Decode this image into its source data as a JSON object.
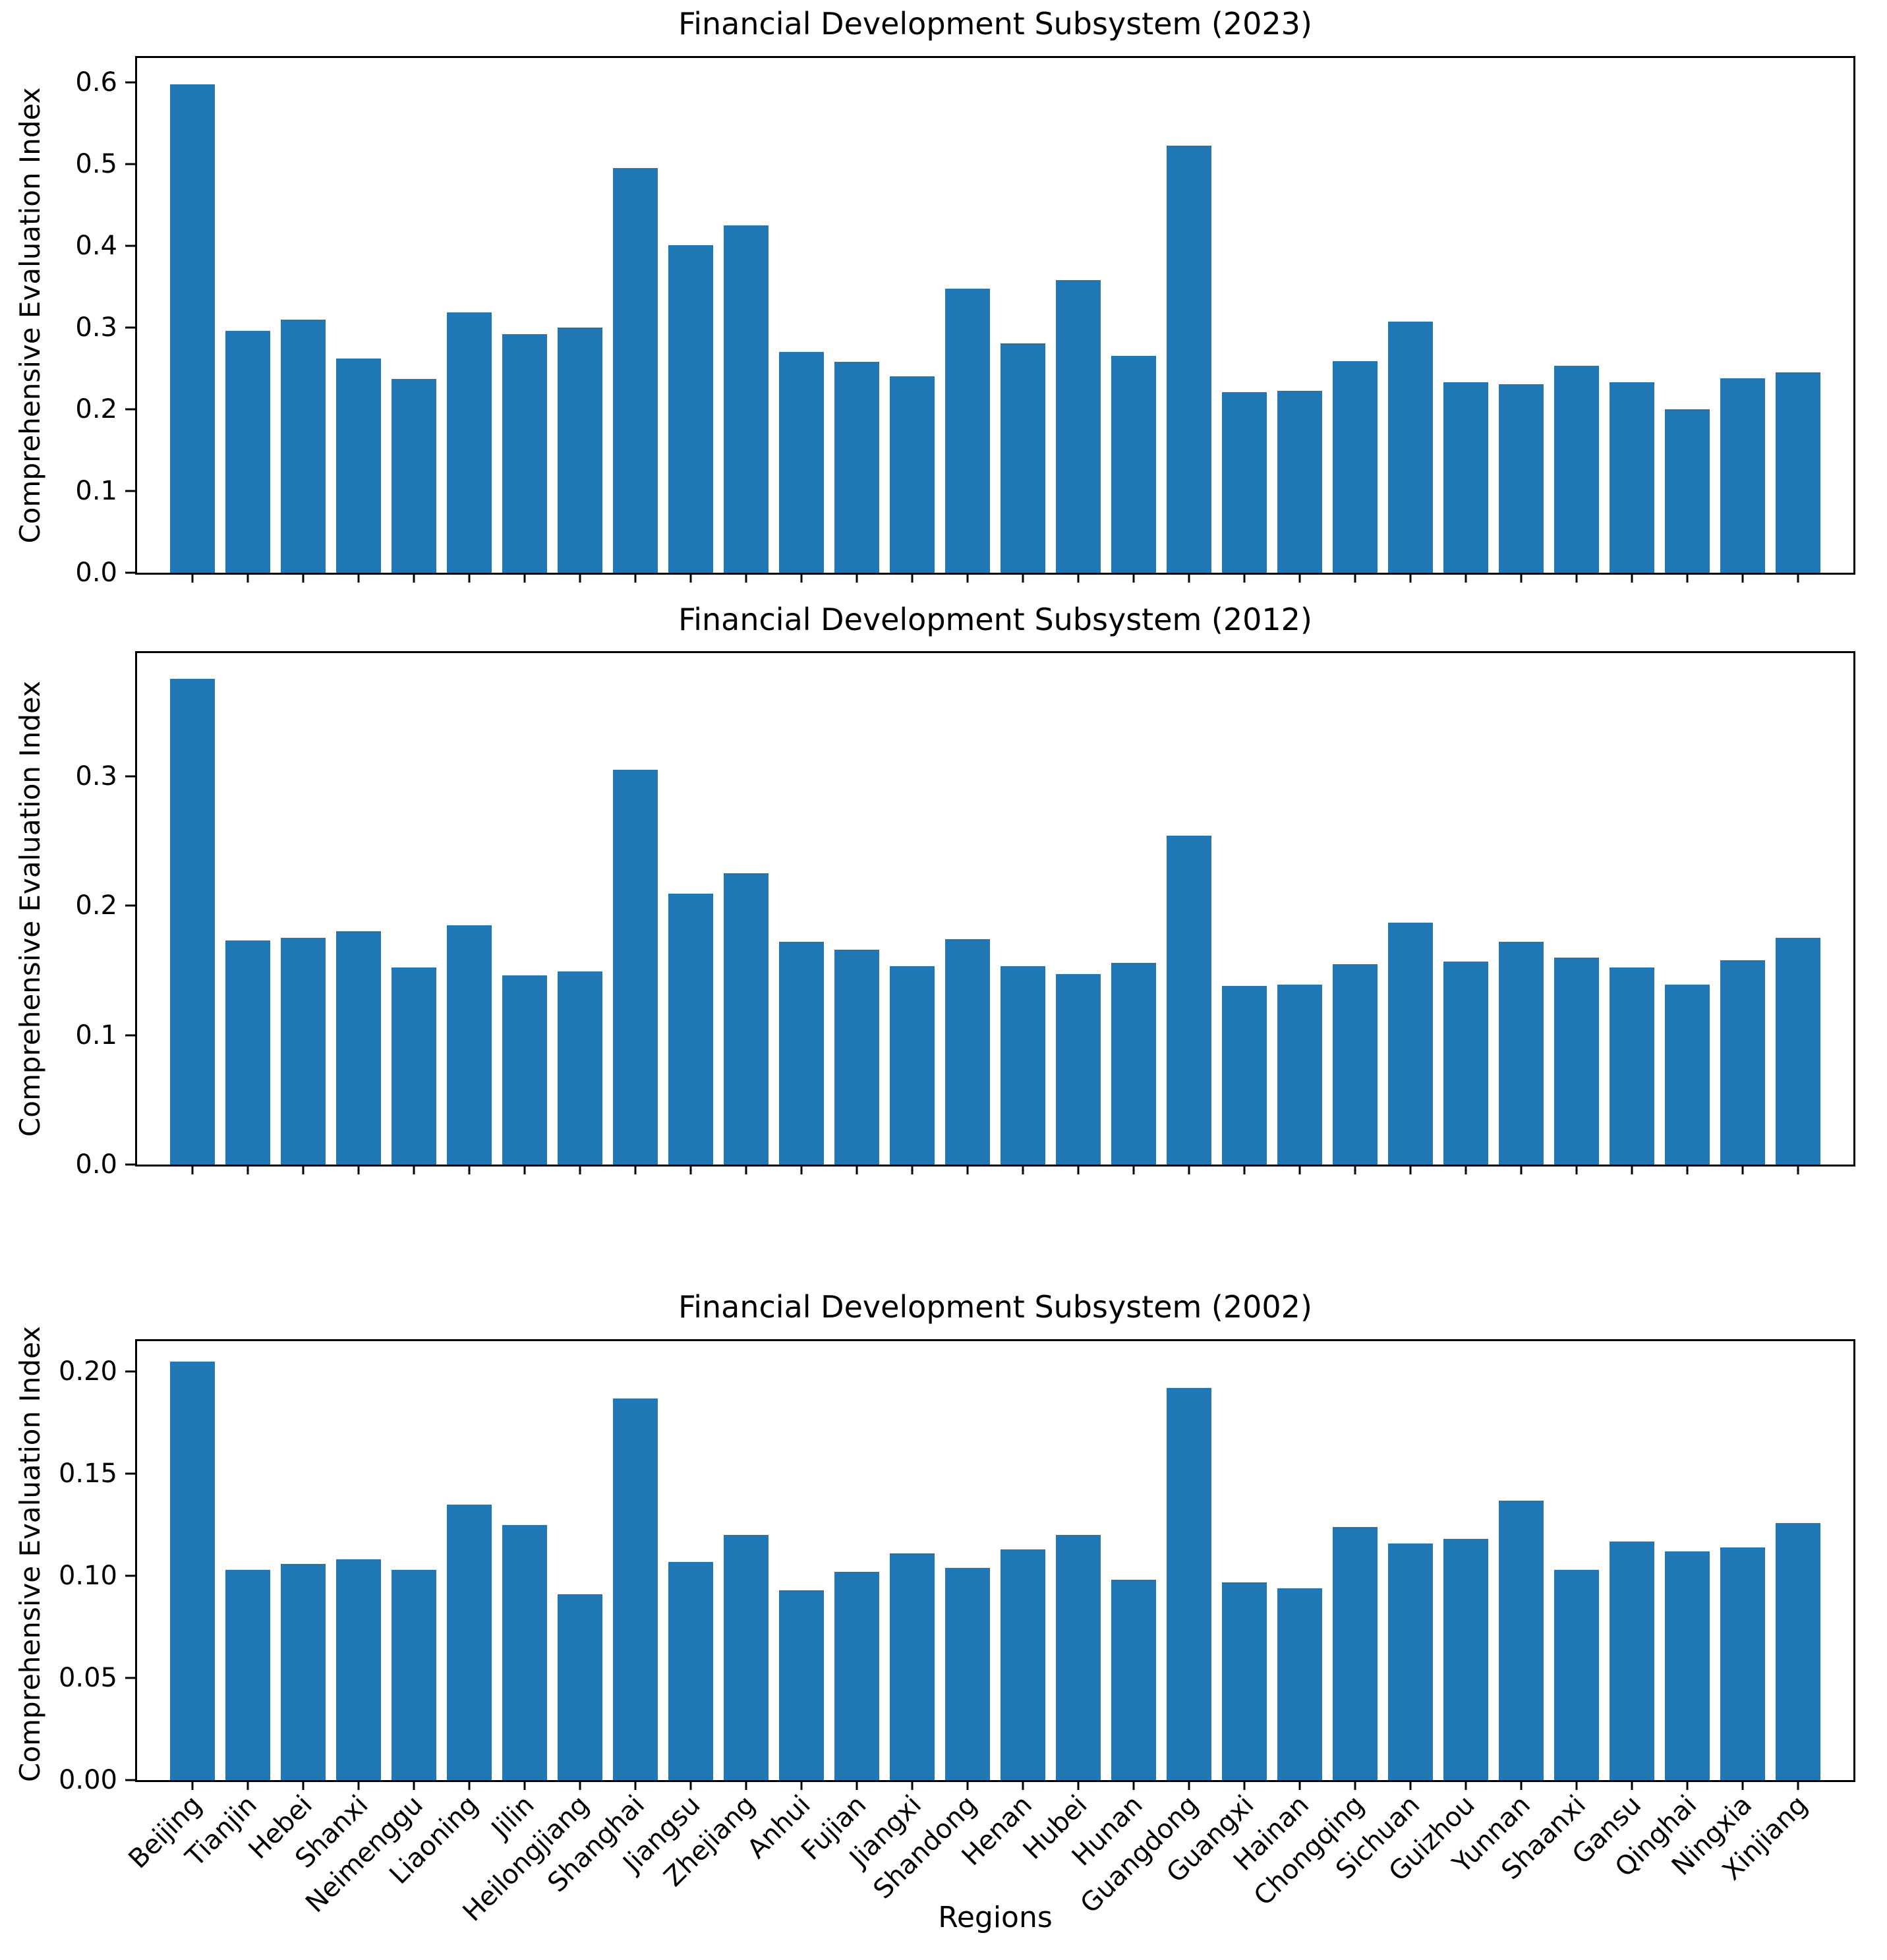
{
  "style": {
    "bar_color": "#1f77b4",
    "axis_color": "#000000",
    "background": "#ffffff"
  },
  "figure": {
    "xlabel": "Regions",
    "ylabel": "Comprehensive Evaluation Index"
  },
  "chart_data": [
    {
      "type": "bar",
      "title": "Financial Development Subsystem (2023)",
      "xlabel": "",
      "ylabel": "Comprehensive Evaluation Index",
      "legend": "none",
      "grid": false,
      "show_xticklabels": false,
      "categories": [
        "Beijing",
        "Tianjin",
        "Hebei",
        "Shanxi",
        "Neimenggu",
        "Liaoning",
        "Jilin",
        "Heilongjiang",
        "Shanghai",
        "Jiangsu",
        "Zhejiang",
        "Anhui",
        "Fujian",
        "Jiangxi",
        "Shandong",
        "Henan",
        "Hubei",
        "Hunan",
        "Guangdong",
        "Guangxi",
        "Hainan",
        "Chongqing",
        "Sichuan",
        "Guizhou",
        "Yunnan",
        "Shaanxi",
        "Gansu",
        "Qinghai",
        "Ningxia",
        "Xinjiang"
      ],
      "values": [
        0.598,
        0.296,
        0.31,
        0.262,
        0.237,
        0.319,
        0.292,
        0.3,
        0.495,
        0.401,
        0.425,
        0.27,
        0.258,
        0.24,
        0.348,
        0.281,
        0.358,
        0.265,
        0.523,
        0.221,
        0.223,
        0.259,
        0.307,
        0.233,
        0.231,
        0.253,
        0.233,
        0.2,
        0.238,
        0.245
      ],
      "ylim": [
        0,
        0.63
      ],
      "ytick_values": [
        0.0,
        0.1,
        0.2,
        0.3,
        0.4,
        0.5,
        0.6
      ],
      "yticks": [
        "0.0",
        "0.1",
        "0.2",
        "0.3",
        "0.4",
        "0.5",
        "0.6"
      ]
    },
    {
      "type": "bar",
      "title": "Financial Development Subsystem (2012)",
      "xlabel": "",
      "ylabel": "Comprehensive Evaluation Index",
      "legend": "none",
      "grid": false,
      "show_xticklabels": false,
      "categories": [
        "Beijing",
        "Tianjin",
        "Hebei",
        "Shanxi",
        "Neimenggu",
        "Liaoning",
        "Jilin",
        "Heilongjiang",
        "Shanghai",
        "Jiangsu",
        "Zhejiang",
        "Anhui",
        "Fujian",
        "Jiangxi",
        "Shandong",
        "Henan",
        "Hubei",
        "Hunan",
        "Guangdong",
        "Guangxi",
        "Hainan",
        "Chongqing",
        "Sichuan",
        "Guizhou",
        "Yunnan",
        "Shaanxi",
        "Gansu",
        "Qinghai",
        "Ningxia",
        "Xinjiang"
      ],
      "values": [
        0.375,
        0.173,
        0.175,
        0.18,
        0.152,
        0.185,
        0.146,
        0.149,
        0.305,
        0.209,
        0.225,
        0.172,
        0.166,
        0.153,
        0.174,
        0.153,
        0.147,
        0.156,
        0.254,
        0.138,
        0.139,
        0.155,
        0.187,
        0.157,
        0.172,
        0.16,
        0.152,
        0.139,
        0.158,
        0.175
      ],
      "ylim": [
        0,
        0.395
      ],
      "ytick_values": [
        0.0,
        0.1,
        0.2,
        0.3
      ],
      "yticks": [
        "0.0",
        "0.1",
        "0.2",
        "0.3"
      ]
    },
    {
      "type": "bar",
      "title": "Financial Development Subsystem (2002)",
      "xlabel": "Regions",
      "ylabel": "Comprehensive Evaluation Index",
      "legend": "none",
      "grid": false,
      "show_xticklabels": true,
      "categories": [
        "Beijing",
        "Tianjin",
        "Hebei",
        "Shanxi",
        "Neimenggu",
        "Liaoning",
        "Jilin",
        "Heilongjiang",
        "Shanghai",
        "Jiangsu",
        "Zhejiang",
        "Anhui",
        "Fujian",
        "Jiangxi",
        "Shandong",
        "Henan",
        "Hubei",
        "Hunan",
        "Guangdong",
        "Guangxi",
        "Hainan",
        "Chongqing",
        "Sichuan",
        "Guizhou",
        "Yunnan",
        "Shaanxi",
        "Gansu",
        "Qinghai",
        "Ningxia",
        "Xinjiang"
      ],
      "values": [
        0.205,
        0.103,
        0.106,
        0.108,
        0.103,
        0.135,
        0.125,
        0.091,
        0.187,
        0.107,
        0.12,
        0.093,
        0.102,
        0.111,
        0.104,
        0.113,
        0.12,
        0.098,
        0.192,
        0.097,
        0.094,
        0.124,
        0.116,
        0.118,
        0.137,
        0.103,
        0.117,
        0.112,
        0.114,
        0.126
      ],
      "ylim": [
        0,
        0.215
      ],
      "ytick_values": [
        0.0,
        0.05,
        0.1,
        0.15,
        0.2
      ],
      "yticks": [
        "0.00",
        "0.05",
        "0.10",
        "0.15",
        "0.20"
      ]
    }
  ]
}
